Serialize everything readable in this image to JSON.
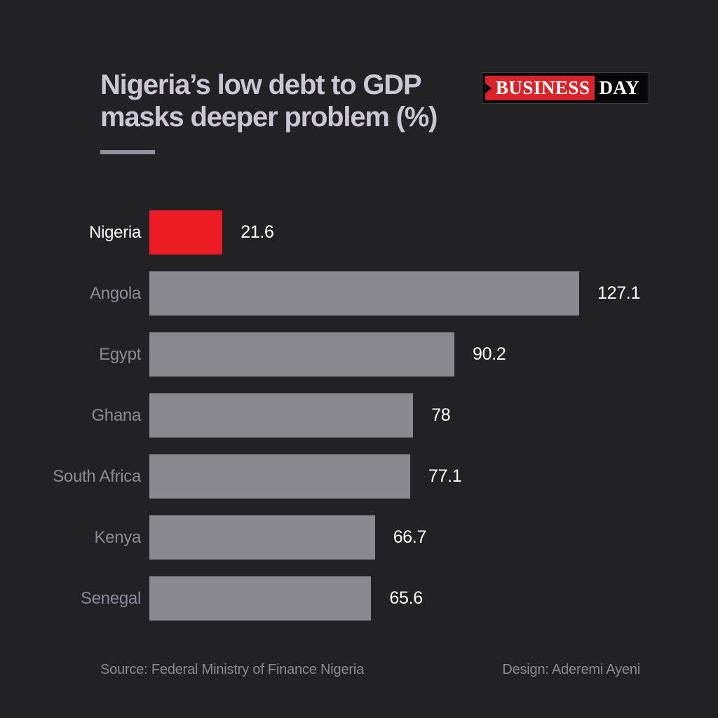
{
  "title": {
    "line1": "Nigeria’s low debt to GDP",
    "line2": "masks deeper problem (%)"
  },
  "logo": {
    "part1": "BUSINESS",
    "part2": "DAY",
    "red": "#d8232b",
    "black": "#050507"
  },
  "chart_data": {
    "type": "bar",
    "orientation": "horizontal",
    "title": "Nigeria’s low debt to GDP masks deeper problem (%)",
    "categories": [
      "Nigeria",
      "Angola",
      "Egypt",
      "Ghana",
      "South Africa",
      "Kenya",
      "Senegal"
    ],
    "values": [
      21.6,
      127.1,
      90.2,
      78,
      77.1,
      66.7,
      65.6
    ],
    "value_labels": [
      "21.6",
      "127.1",
      "90.2",
      "78",
      "77.1",
      "66.7",
      "65.6"
    ],
    "xlim": [
      0,
      127.1
    ],
    "grid": false,
    "legend": false,
    "highlight_index": 0,
    "highlight_color": "#ec1c24",
    "highlight_label_color": "#ffffff",
    "bar_color": "#8b8990",
    "label_color": "#8d8a92",
    "value_color": "#ffffff"
  },
  "footer": {
    "source": "Source: Federal Ministry of Finance Nigeria",
    "design": "Design: Aderemi Ayeni"
  },
  "colors": {
    "background": "#222226",
    "title_text": "#cac7d2",
    "underline": "#94929a"
  }
}
